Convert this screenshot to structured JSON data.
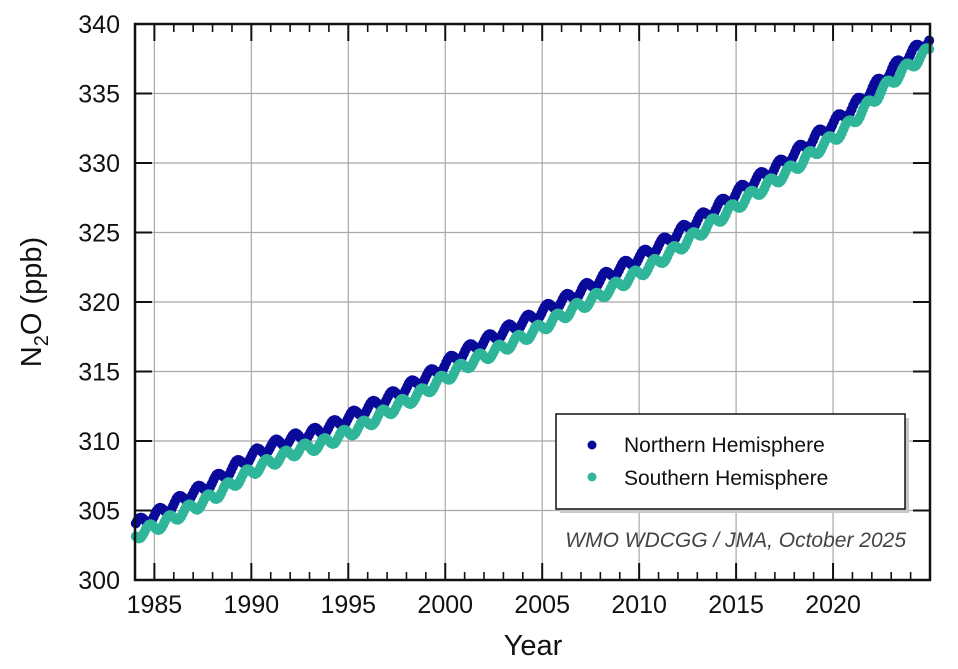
{
  "chart_data": {
    "type": "scatter",
    "title": "",
    "xlabel": "Year",
    "ylabel_main": "N",
    "ylabel_sub": "2",
    "ylabel_rest": "O (ppb)",
    "xlim": [
      1984,
      2025
    ],
    "ylim": [
      300,
      340
    ],
    "grid": true,
    "x_ticks": [
      1985,
      1990,
      1995,
      2000,
      2005,
      2010,
      2015,
      2020
    ],
    "x_tick_labels": [
      "1985",
      "1990",
      "1995",
      "2000",
      "2005",
      "2010",
      "2015",
      "2020"
    ],
    "y_ticks": [
      300,
      305,
      310,
      315,
      320,
      325,
      330,
      335,
      340
    ],
    "y_tick_labels": [
      "300",
      "305",
      "310",
      "315",
      "320",
      "325",
      "330",
      "335",
      "340"
    ],
    "legend_position": "lower-right",
    "credit": "WMO WDCGG / JMA, October 2025",
    "series": [
      {
        "name": "Northern Hemisphere",
        "color": "#0a0a9a",
        "marker": "circle",
        "years": [
          1984,
          1985,
          1986,
          1987,
          1988,
          1989,
          1990,
          1991,
          1992,
          1993,
          1994,
          1995,
          1996,
          1997,
          1998,
          1999,
          2000,
          2001,
          2002,
          2003,
          2004,
          2005,
          2006,
          2007,
          2008,
          2009,
          2010,
          2011,
          2012,
          2013,
          2014,
          2015,
          2016,
          2017,
          2018,
          2019,
          2020,
          2021,
          2022,
          2023,
          2024
        ],
        "annual_mean_ppb": [
          304.3,
          305.0,
          305.9,
          306.6,
          307.5,
          308.5,
          309.3,
          309.9,
          310.3,
          310.7,
          311.3,
          312.0,
          312.7,
          313.4,
          314.2,
          315.0,
          316.0,
          316.8,
          317.5,
          318.2,
          318.9,
          319.7,
          320.4,
          321.2,
          322.0,
          322.8,
          323.6,
          324.5,
          325.4,
          326.3,
          327.3,
          328.3,
          329.2,
          330.1,
          331.2,
          332.3,
          333.4,
          334.6,
          336.0,
          337.3,
          338.4
        ],
        "seasonal_amplitude_ppb": 0.35
      },
      {
        "name": "Southern Hemisphere",
        "color": "#2fb59a",
        "marker": "circle",
        "years": [
          1984,
          1985,
          1986,
          1987,
          1988,
          1989,
          1990,
          1991,
          1992,
          1993,
          1994,
          1995,
          1996,
          1997,
          1998,
          1999,
          2000,
          2001,
          2002,
          2003,
          2004,
          2005,
          2006,
          2007,
          2008,
          2009,
          2010,
          2011,
          2012,
          2013,
          2014,
          2015,
          2016,
          2017,
          2018,
          2019,
          2020,
          2021,
          2022,
          2023,
          2024
        ],
        "annual_mean_ppb": [
          303.5,
          304.1,
          304.9,
          305.6,
          306.4,
          307.4,
          308.2,
          308.8,
          309.4,
          309.7,
          310.3,
          310.9,
          311.7,
          312.5,
          313.2,
          314.1,
          315.0,
          315.8,
          316.4,
          317.1,
          317.8,
          318.6,
          319.4,
          320.1,
          320.9,
          321.7,
          322.5,
          323.4,
          324.4,
          325.4,
          326.4,
          327.4,
          328.3,
          329.2,
          330.2,
          331.3,
          332.3,
          333.7,
          335.2,
          336.5,
          337.6
        ],
        "seasonal_amplitude_ppb": 0.35
      }
    ]
  }
}
